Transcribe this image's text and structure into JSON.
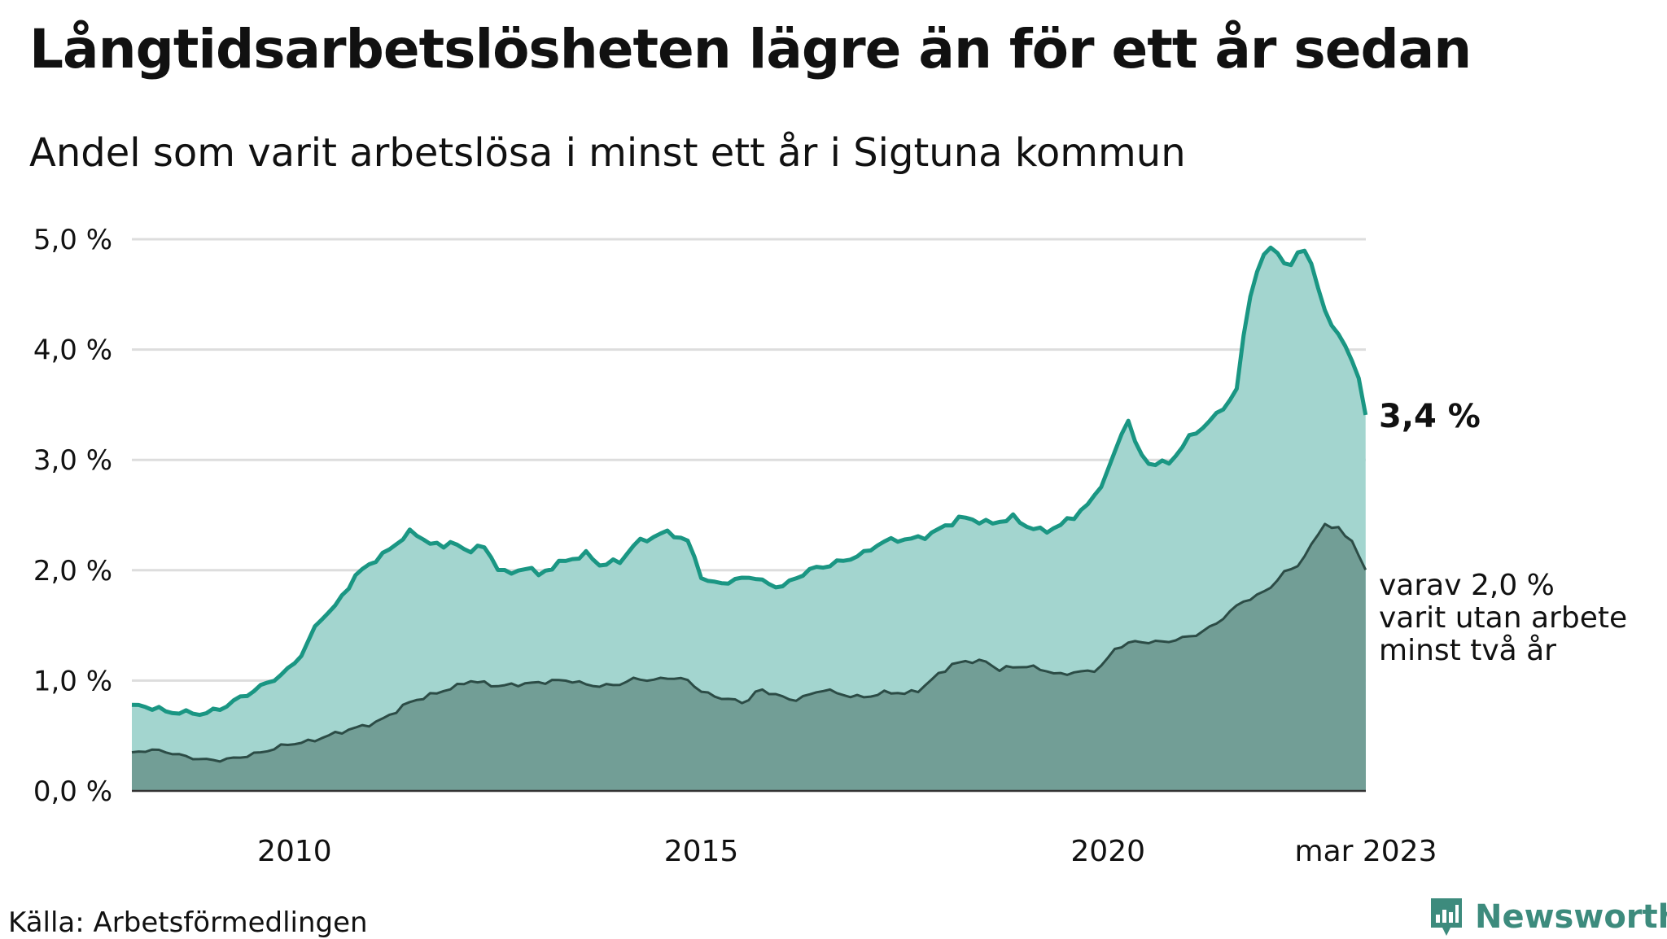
{
  "title": "Långtidsarbetslösheten lägre än för ett år sedan",
  "subtitle": "Andel som varit arbetslösa i minst ett år i Sigtuna kommun",
  "source": "Källa: Arbetsförmedlingen",
  "logo": {
    "text": "Newsworthy",
    "icon": "newsworthy-logo-icon"
  },
  "colors": {
    "main_line": "#1a9683",
    "main_fill": "#a3d5cf",
    "sub_line": "#2c4c46",
    "sub_fill": "#729e96",
    "grid": "#dddddd",
    "logo": "#3d8b7d"
  },
  "chart_data": {
    "type": "area",
    "x_start": "2008-01",
    "x_end": "2023-03",
    "x_ticks": [
      {
        "x": 2010,
        "label": "2010"
      },
      {
        "x": 2015,
        "label": "2015"
      },
      {
        "x": 2020,
        "label": "2020"
      },
      {
        "x": 2023.17,
        "label": "mar 2023"
      }
    ],
    "ylim": [
      0,
      5
    ],
    "y_ticks": [
      "0,0 %",
      "1,0 %",
      "2,0 %",
      "3,0 %",
      "4,0 %",
      "5,0 %"
    ],
    "grid": true,
    "series": [
      {
        "key": "minst_ett_ar",
        "end_label": "3,4 %",
        "anchors": [
          [
            2008.0,
            0.78
          ],
          [
            2008.3,
            0.75
          ],
          [
            2008.4,
            0.72
          ],
          [
            2008.6,
            0.71
          ],
          [
            2008.9,
            0.7
          ],
          [
            2009.1,
            0.75
          ],
          [
            2009.3,
            0.83
          ],
          [
            2009.6,
            0.95
          ],
          [
            2009.9,
            1.08
          ],
          [
            2010.1,
            1.25
          ],
          [
            2010.3,
            1.55
          ],
          [
            2010.5,
            1.67
          ],
          [
            2010.75,
            1.95
          ],
          [
            2011.0,
            2.1
          ],
          [
            2011.2,
            2.2
          ],
          [
            2011.4,
            2.35
          ],
          [
            2011.6,
            2.28
          ],
          [
            2011.8,
            2.2
          ],
          [
            2011.95,
            2.28
          ],
          [
            2012.1,
            2.15
          ],
          [
            2012.3,
            2.25
          ],
          [
            2012.45,
            2.05
          ],
          [
            2012.7,
            1.95
          ],
          [
            2012.85,
            2.05
          ],
          [
            2013.0,
            1.95
          ],
          [
            2013.2,
            2.05
          ],
          [
            2013.4,
            2.1
          ],
          [
            2013.6,
            2.15
          ],
          [
            2013.75,
            2.05
          ],
          [
            2014.0,
            2.08
          ],
          [
            2014.2,
            2.25
          ],
          [
            2014.4,
            2.3
          ],
          [
            2014.6,
            2.35
          ],
          [
            2014.85,
            2.25
          ],
          [
            2015.0,
            1.95
          ],
          [
            2015.1,
            1.88
          ],
          [
            2015.4,
            1.9
          ],
          [
            2015.6,
            1.95
          ],
          [
            2015.8,
            1.88
          ],
          [
            2016.0,
            1.85
          ],
          [
            2016.2,
            1.95
          ],
          [
            2016.4,
            2.02
          ],
          [
            2016.6,
            2.05
          ],
          [
            2016.8,
            2.1
          ],
          [
            2017.0,
            2.15
          ],
          [
            2017.2,
            2.25
          ],
          [
            2017.4,
            2.28
          ],
          [
            2017.6,
            2.28
          ],
          [
            2017.8,
            2.32
          ],
          [
            2018.0,
            2.4
          ],
          [
            2018.2,
            2.48
          ],
          [
            2018.4,
            2.45
          ],
          [
            2018.55,
            2.42
          ],
          [
            2018.7,
            2.45
          ],
          [
            2018.85,
            2.48
          ],
          [
            2019.0,
            2.4
          ],
          [
            2019.2,
            2.35
          ],
          [
            2019.4,
            2.4
          ],
          [
            2019.6,
            2.5
          ],
          [
            2019.8,
            2.62
          ],
          [
            2020.0,
            2.9
          ],
          [
            2020.15,
            3.2
          ],
          [
            2020.25,
            3.38
          ],
          [
            2020.35,
            3.1
          ],
          [
            2020.5,
            2.97
          ],
          [
            2020.75,
            2.97
          ],
          [
            2021.0,
            3.2
          ],
          [
            2021.3,
            3.38
          ],
          [
            2021.45,
            3.5
          ],
          [
            2021.6,
            3.65
          ],
          [
            2021.7,
            4.35
          ],
          [
            2021.8,
            4.65
          ],
          [
            2021.95,
            4.9
          ],
          [
            2022.05,
            4.95
          ],
          [
            2022.15,
            4.78
          ],
          [
            2022.25,
            4.75
          ],
          [
            2022.35,
            4.92
          ],
          [
            2022.45,
            4.9
          ],
          [
            2022.6,
            4.5
          ],
          [
            2022.75,
            4.22
          ],
          [
            2022.9,
            4.05
          ],
          [
            2023.0,
            3.92
          ],
          [
            2023.08,
            3.75
          ],
          [
            2023.12,
            3.52
          ],
          [
            2023.17,
            3.4
          ]
        ]
      },
      {
        "key": "minst_tva_ar",
        "end_label_lines": [
          "varav 2,0 %",
          "varit utan arbete",
          "minst två år"
        ],
        "anchors": [
          [
            2008.0,
            0.35
          ],
          [
            2008.2,
            0.37
          ],
          [
            2008.4,
            0.36
          ],
          [
            2008.6,
            0.32
          ],
          [
            2008.9,
            0.28
          ],
          [
            2009.1,
            0.28
          ],
          [
            2009.3,
            0.3
          ],
          [
            2009.6,
            0.35
          ],
          [
            2009.9,
            0.42
          ],
          [
            2010.2,
            0.45
          ],
          [
            2010.5,
            0.52
          ],
          [
            2010.8,
            0.58
          ],
          [
            2011.0,
            0.62
          ],
          [
            2011.2,
            0.7
          ],
          [
            2011.4,
            0.8
          ],
          [
            2011.6,
            0.85
          ],
          [
            2011.8,
            0.9
          ],
          [
            2012.0,
            0.95
          ],
          [
            2012.15,
            1.0
          ],
          [
            2012.3,
            0.98
          ],
          [
            2012.5,
            0.95
          ],
          [
            2012.8,
            0.97
          ],
          [
            2013.0,
            0.98
          ],
          [
            2013.2,
            1.0
          ],
          [
            2013.4,
            1.0
          ],
          [
            2013.6,
            0.96
          ],
          [
            2013.8,
            0.95
          ],
          [
            2014.0,
            0.97
          ],
          [
            2014.2,
            1.02
          ],
          [
            2014.4,
            1.0
          ],
          [
            2014.6,
            1.03
          ],
          [
            2014.85,
            1.0
          ],
          [
            2015.0,
            0.9
          ],
          [
            2015.2,
            0.85
          ],
          [
            2015.4,
            0.82
          ],
          [
            2015.55,
            0.8
          ],
          [
            2015.7,
            0.92
          ],
          [
            2015.9,
            0.88
          ],
          [
            2016.1,
            0.82
          ],
          [
            2016.3,
            0.86
          ],
          [
            2016.5,
            0.92
          ],
          [
            2016.7,
            0.88
          ],
          [
            2016.9,
            0.85
          ],
          [
            2017.1,
            0.86
          ],
          [
            2017.3,
            0.9
          ],
          [
            2017.5,
            0.88
          ],
          [
            2017.7,
            0.92
          ],
          [
            2017.9,
            1.05
          ],
          [
            2018.1,
            1.15
          ],
          [
            2018.3,
            1.18
          ],
          [
            2018.5,
            1.17
          ],
          [
            2018.65,
            1.1
          ],
          [
            2018.8,
            1.12
          ],
          [
            2019.0,
            1.13
          ],
          [
            2019.2,
            1.1
          ],
          [
            2019.4,
            1.05
          ],
          [
            2019.6,
            1.08
          ],
          [
            2019.8,
            1.08
          ],
          [
            2019.95,
            1.15
          ],
          [
            2020.1,
            1.3
          ],
          [
            2020.3,
            1.35
          ],
          [
            2020.5,
            1.35
          ],
          [
            2020.7,
            1.35
          ],
          [
            2020.9,
            1.38
          ],
          [
            2021.1,
            1.42
          ],
          [
            2021.3,
            1.5
          ],
          [
            2021.5,
            1.62
          ],
          [
            2021.65,
            1.72
          ],
          [
            2021.8,
            1.75
          ],
          [
            2022.0,
            1.85
          ],
          [
            2022.2,
            2.0
          ],
          [
            2022.35,
            2.05
          ],
          [
            2022.5,
            2.22
          ],
          [
            2022.65,
            2.43
          ],
          [
            2022.75,
            2.38
          ],
          [
            2022.85,
            2.38
          ],
          [
            2022.95,
            2.3
          ],
          [
            2023.05,
            2.22
          ],
          [
            2023.1,
            2.08
          ],
          [
            2023.17,
            2.0
          ]
        ]
      }
    ]
  }
}
